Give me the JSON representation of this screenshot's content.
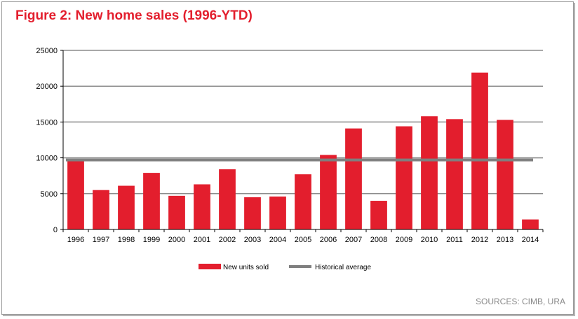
{
  "title": "Figure 2: New home sales (1996-YTD)",
  "source": "SOURCES: CIMB, URA",
  "colors": {
    "bar": "#e31e2d",
    "average_line": "#7f7f7f",
    "grid": "#8c8c8c",
    "title": "#e31e2d"
  },
  "chart_data": {
    "type": "bar",
    "title": "Figure 2: New home sales (1996-YTD)",
    "categories": [
      "1996",
      "1997",
      "1998",
      "1999",
      "2000",
      "2001",
      "2002",
      "2003",
      "2004",
      "2005",
      "2006",
      "2007",
      "2008",
      "2009",
      "2010",
      "2011",
      "2012",
      "2013",
      "2014"
    ],
    "series": [
      {
        "name": "New units sold",
        "type": "bar",
        "values": [
          9600,
          5500,
          6100,
          7900,
          4700,
          6300,
          8400,
          4500,
          4600,
          7700,
          10400,
          14100,
          4000,
          14400,
          15800,
          15400,
          21900,
          15300,
          1400
        ]
      },
      {
        "name": "Historical average",
        "type": "line",
        "value": 9700
      }
    ],
    "ylim": [
      0,
      25000
    ],
    "yticks": [
      "0",
      "5000",
      "10000",
      "15000",
      "20000",
      "25000"
    ],
    "ytick_values": [
      0,
      5000,
      10000,
      15000,
      20000,
      25000
    ],
    "grid": true,
    "legend": "bottom-center",
    "legend_labels": [
      "New units sold",
      "Historical average"
    ],
    "xlabel": "",
    "ylabel": ""
  }
}
